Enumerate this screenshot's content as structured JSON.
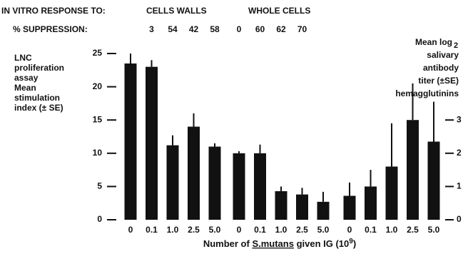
{
  "header": {
    "response_label": "IN VITRO RESPONSE TO:",
    "suppression_label": "% SUPPRESSION:",
    "groups": [
      {
        "name": "CELLS WALLS",
        "suppression": [
          null,
          3,
          54,
          42,
          58
        ]
      },
      {
        "name": "WHOLE CELLS",
        "suppression": [
          0,
          60,
          62,
          70,
          null
        ]
      }
    ]
  },
  "chart_data": {
    "type": "bar",
    "y_label": [
      "LNC",
      "proliferation",
      "assay",
      "Mean",
      "stimulation",
      "index (± SE)"
    ],
    "y2_label": {
      "lines": [
        "Mean log",
        "salivary",
        "antibody",
        "titer (±SE)",
        "hemagglutinins"
      ],
      "subscript": "2"
    },
    "x_label": {
      "parts": [
        "Number of ",
        "S.mutans",
        " given IG (10",
        "9",
        ")"
      ]
    },
    "categories": [
      "0",
      "0.1",
      "1.0",
      "2.5",
      "5.0",
      "0",
      "0.1",
      "1.0",
      "2.5",
      "5.0",
      "0",
      "0.1",
      "1.0",
      "2.5",
      "5.0"
    ],
    "series": [
      {
        "color": "#111111",
        "axis": "y",
        "values": [
          23.5,
          23,
          11.2,
          14,
          11,
          10,
          10,
          4.3,
          3.8,
          2.7,
          null,
          null,
          null,
          null,
          null
        ],
        "errors": [
          1.5,
          1,
          1.5,
          2,
          0.5,
          0.3,
          1.3,
          0.7,
          1,
          1.5,
          null,
          null,
          null,
          null,
          null
        ]
      },
      {
        "color": "#111111",
        "axis": "y2",
        "values": [
          null,
          null,
          null,
          null,
          null,
          null,
          null,
          null,
          null,
          null,
          0.72,
          1.0,
          1.6,
          3.0,
          2.35
        ],
        "errors": [
          null,
          null,
          null,
          null,
          null,
          null,
          null,
          null,
          null,
          null,
          0.4,
          0.5,
          1.3,
          1.1,
          1.2
        ]
      }
    ],
    "ylim": [
      0,
      25
    ],
    "yticks": [
      0,
      5,
      10,
      15,
      20,
      25
    ],
    "y2lim": [
      0,
      5
    ],
    "y2ticks": [
      0,
      1,
      2,
      3
    ]
  }
}
